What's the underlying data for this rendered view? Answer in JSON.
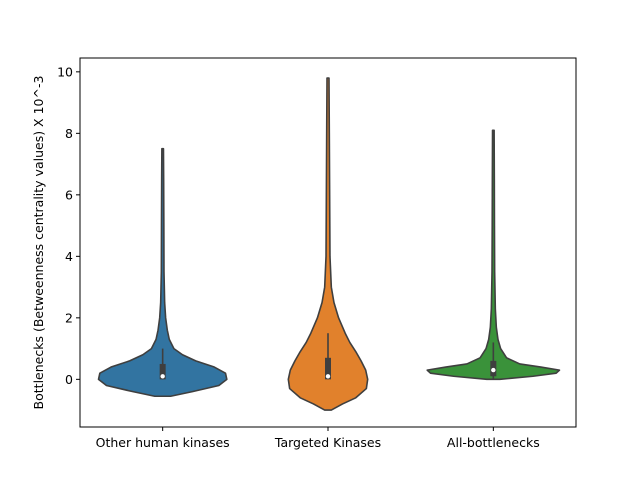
{
  "chart_data": {
    "type": "violin",
    "title": "",
    "xlabel": "",
    "ylabel": "Bottlenecks (Betweenness centrality values) X 10^-3",
    "ylim": [
      -1.55,
      10.45
    ],
    "y_ticks": [
      0,
      2,
      4,
      6,
      8,
      10
    ],
    "y_tick_labels": [
      "0",
      "2",
      "4",
      "6",
      "8",
      "10"
    ],
    "categories": [
      "Other human kinases",
      "Targeted Kinases",
      "All-bottlenecks"
    ],
    "colors": [
      "#3274a1",
      "#e1812c",
      "#3a923a"
    ],
    "outline_color": "#3f3f3f",
    "violins": [
      {
        "name": "Other human kinases",
        "min": -0.55,
        "max": 7.5,
        "q1": 0.0,
        "median": 0.1,
        "q3": 0.5,
        "whisker_low": 0.0,
        "whisker_high": 1.0,
        "density": [
          [
            -0.55,
            0.12
          ],
          [
            -0.4,
            0.45
          ],
          [
            -0.2,
            0.85
          ],
          [
            0.0,
            0.97
          ],
          [
            0.2,
            0.95
          ],
          [
            0.4,
            0.78
          ],
          [
            0.6,
            0.5
          ],
          [
            0.8,
            0.3
          ],
          [
            1.0,
            0.17
          ],
          [
            1.3,
            0.1
          ],
          [
            1.6,
            0.07
          ],
          [
            2.0,
            0.045
          ],
          [
            2.5,
            0.03
          ],
          [
            3.5,
            0.02
          ],
          [
            5.0,
            0.018
          ],
          [
            6.5,
            0.015
          ],
          [
            7.5,
            0.012
          ]
        ]
      },
      {
        "name": "Targeted Kinases",
        "min": -1.0,
        "max": 9.8,
        "q1": 0.0,
        "median": 0.1,
        "q3": 0.7,
        "whisker_low": 0.0,
        "whisker_high": 1.5,
        "density": [
          [
            -1.0,
            0.05
          ],
          [
            -0.8,
            0.22
          ],
          [
            -0.6,
            0.42
          ],
          [
            -0.3,
            0.58
          ],
          [
            0.0,
            0.6
          ],
          [
            0.3,
            0.57
          ],
          [
            0.6,
            0.5
          ],
          [
            0.9,
            0.42
          ],
          [
            1.2,
            0.33
          ],
          [
            1.5,
            0.26
          ],
          [
            2.0,
            0.16
          ],
          [
            2.5,
            0.09
          ],
          [
            3.0,
            0.05
          ],
          [
            4.0,
            0.03
          ],
          [
            6.0,
            0.025
          ],
          [
            8.0,
            0.02
          ],
          [
            9.8,
            0.015
          ]
        ]
      },
      {
        "name": "All-bottlenecks",
        "min": 0.0,
        "max": 8.1,
        "q1": 0.1,
        "median": 0.3,
        "q3": 0.6,
        "whisker_low": 0.0,
        "whisker_high": 1.2,
        "density": [
          [
            0.0,
            0.1
          ],
          [
            0.1,
            0.6
          ],
          [
            0.2,
            0.95
          ],
          [
            0.3,
            1.0
          ],
          [
            0.4,
            0.72
          ],
          [
            0.5,
            0.4
          ],
          [
            0.7,
            0.2
          ],
          [
            1.0,
            0.11
          ],
          [
            1.3,
            0.07
          ],
          [
            1.7,
            0.045
          ],
          [
            2.3,
            0.03
          ],
          [
            3.5,
            0.02
          ],
          [
            5.0,
            0.017
          ],
          [
            6.5,
            0.015
          ],
          [
            8.1,
            0.012
          ]
        ]
      }
    ],
    "legend": "none",
    "grid": false
  }
}
